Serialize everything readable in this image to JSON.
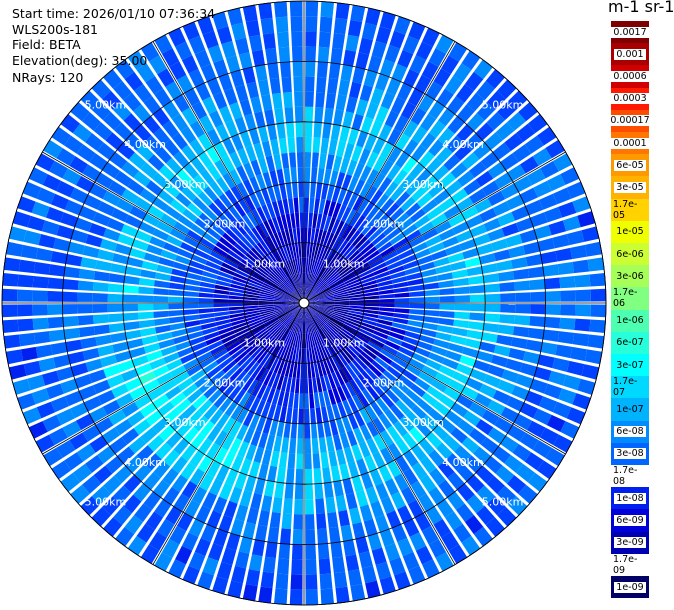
{
  "info": {
    "start_time": "Start time: 2026/01/10 07:36:34",
    "instrument": "WLS200s-181",
    "field": "Field: BETA",
    "elevation": "Elevation(deg): 35.00",
    "nrays": "NRays: 120"
  },
  "colorbar": {
    "title": "m-1 sr-1",
    "levels": [
      {
        "label": "0.0017",
        "color": "#7f0000"
      },
      {
        "label": "0.001",
        "color": "#a80000"
      },
      {
        "label": "0.0006",
        "color": "#d10000"
      },
      {
        "label": "0.0003",
        "color": "#ff1a00"
      },
      {
        "label": "0.00017",
        "color": "#ff4d00"
      },
      {
        "label": "0.0001",
        "color": "#ff7700"
      },
      {
        "label": "6e-05",
        "color": "#ff9900"
      },
      {
        "label": "3e-05",
        "color": "#ffb300"
      },
      {
        "label": "1.7e-05",
        "color": "#ffd200"
      },
      {
        "label": "1e-05",
        "color": "#f0ff00"
      },
      {
        "label": "6e-06",
        "color": "#ccff33"
      },
      {
        "label": "3e-06",
        "color": "#a6ff59"
      },
      {
        "label": "1.7e-06",
        "color": "#80ff80"
      },
      {
        "label": "1e-06",
        "color": "#4dffb0"
      },
      {
        "label": "6e-07",
        "color": "#26ffd9"
      },
      {
        "label": "3e-07",
        "color": "#00ffff"
      },
      {
        "label": "1.7e-07",
        "color": "#00d9ff"
      },
      {
        "label": "1e-07",
        "color": "#00b3ff"
      },
      {
        "label": "6e-08",
        "color": "#008cff"
      },
      {
        "label": "3e-08",
        "color": "#0066ff"
      },
      {
        "label": "1.7e-08",
        "color": "#0040ff"
      },
      {
        "label": "1e-08",
        "color": "#0020f0"
      },
      {
        "label": "6e-09",
        "color": "#0000d9"
      },
      {
        "label": "3e-09",
        "color": "#0000b3"
      },
      {
        "label": "1.7e-09",
        "color": "#00008c"
      },
      {
        "label": "1e-09",
        "color": "#000066"
      }
    ]
  },
  "chart_data": {
    "type": "heatmap",
    "projection": "polar-ppi",
    "field": "BETA",
    "units": "m-1 sr-1",
    "elevation_deg": 35.0,
    "n_rays": 120,
    "max_range_km": 5.0,
    "range_rings_km": [
      1,
      2,
      3,
      4,
      5
    ],
    "ring_labels": [
      "1.00km",
      "2.00km",
      "3.00km",
      "4.00km",
      "5.00km"
    ],
    "azimuth_lines_deg": [
      0,
      30,
      60,
      90,
      120,
      150,
      180,
      210,
      240,
      270,
      300,
      330
    ],
    "range_bins_km": [
      0.25,
      0.75,
      1.25,
      1.75,
      2.25,
      2.75,
      3.25,
      3.75,
      4.25,
      4.75,
      5.25
    ],
    "typical_beta_by_range": [
      3e-09,
      4e-09,
      6e-09,
      2e-08,
      5e-08,
      1.5e-07,
      8e-08,
      4e-08,
      3.5e-08,
      3e-08,
      3e-08
    ],
    "colors": {
      "low": "#0000b3",
      "mid": "#0066ff",
      "ring": "#26ffd9",
      "outer": "#008cff",
      "ring_line": "#000000"
    }
  }
}
